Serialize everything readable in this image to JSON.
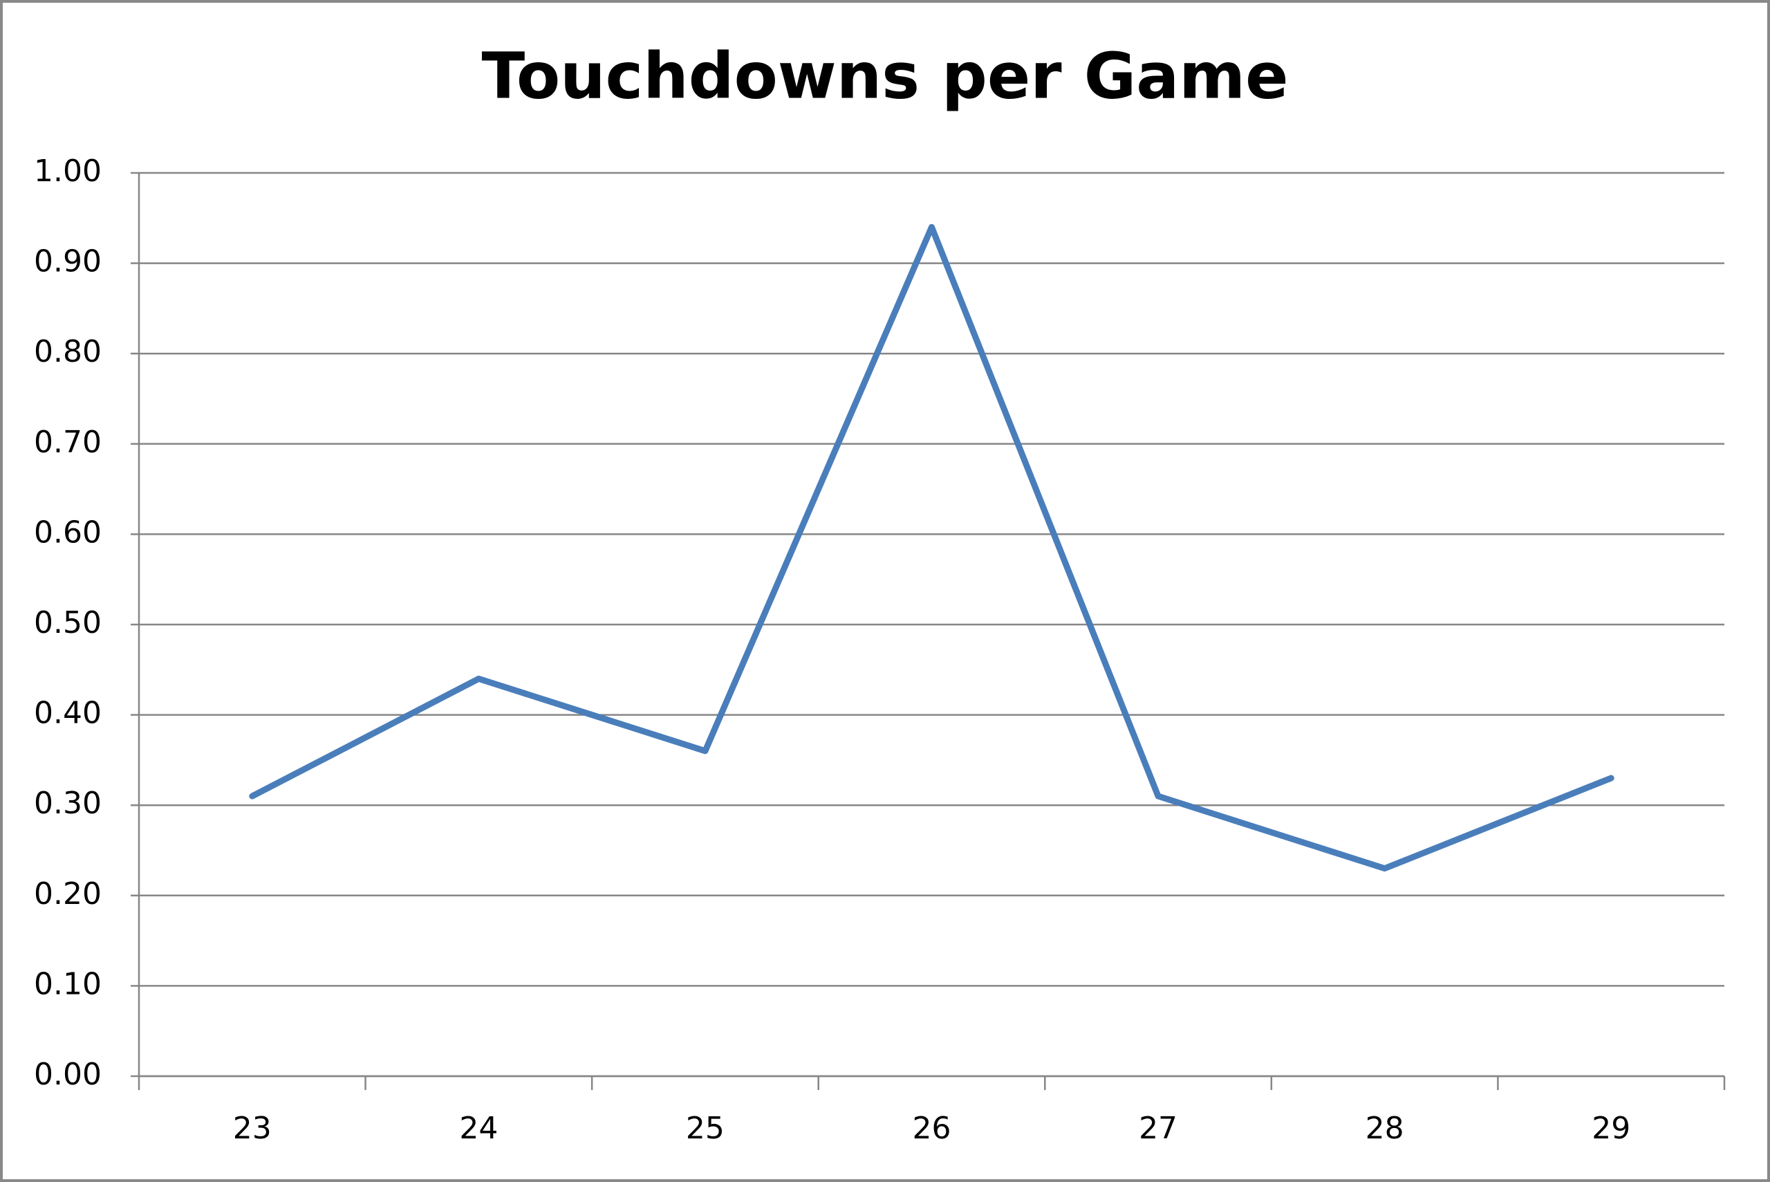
{
  "chart_data": {
    "type": "line",
    "title": "Touchdowns per Game",
    "categories": [
      "23",
      "24",
      "25",
      "26",
      "27",
      "28",
      "29"
    ],
    "series": [
      {
        "name": "Touchdowns per Game",
        "color": "#4a7ebb",
        "values": [
          0.31,
          0.44,
          0.36,
          0.94,
          0.31,
          0.23,
          0.33
        ]
      }
    ],
    "ylim": [
      0,
      1
    ],
    "yticks": [
      {
        "value": 0,
        "label": "0.00"
      },
      {
        "value": 0.1,
        "label": "0.10"
      },
      {
        "value": 0.2,
        "label": "0.20"
      },
      {
        "value": 0.3,
        "label": "0.30"
      },
      {
        "value": 0.4,
        "label": "0.40"
      },
      {
        "value": 0.5,
        "label": "0.50"
      },
      {
        "value": 0.6,
        "label": "0.60"
      },
      {
        "value": 0.7,
        "label": "0.70"
      },
      {
        "value": 0.8,
        "label": "0.80"
      },
      {
        "value": 0.9,
        "label": "0.90"
      },
      {
        "value": 1,
        "label": "1.00"
      }
    ],
    "grid": true
  }
}
